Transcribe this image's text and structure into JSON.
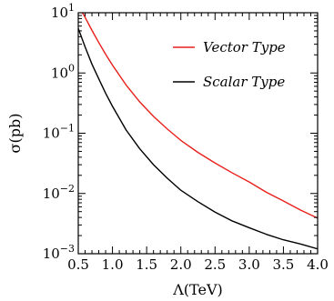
{
  "chart_data": {
    "type": "line",
    "title": "",
    "xlabel": "Λ(TeV)",
    "ylabel": "σ(pb)",
    "xlim": [
      0.5,
      4.0
    ],
    "ylim": [
      0.001,
      10
    ],
    "yscale": "log",
    "grid": false,
    "legend": "top-right",
    "x_ticks": [
      0.5,
      1.0,
      1.5,
      2.0,
      2.5,
      3.0,
      3.5,
      4.0
    ],
    "x_tick_labels": [
      "0.5",
      "1.0",
      "1.5",
      "2.0",
      "2.5",
      "3.0",
      "3.5",
      "4.0"
    ],
    "y_ticks": [
      0.001,
      0.01,
      0.1,
      1,
      10
    ],
    "y_tick_labels": [
      {
        "base": "10",
        "exp": "−3"
      },
      {
        "base": "10",
        "exp": "−2"
      },
      {
        "base": "10",
        "exp": "−1"
      },
      {
        "base": "10",
        "exp": "0"
      },
      {
        "base": "10",
        "exp": "1"
      }
    ],
    "series": [
      {
        "name": "Vector Type",
        "color": "#e8201c",
        "x": [
          0.56,
          0.6,
          0.7,
          0.8,
          0.9,
          1.0,
          1.2,
          1.4,
          1.6,
          1.8,
          2.0,
          2.25,
          2.5,
          2.75,
          3.0,
          3.25,
          3.5,
          3.75,
          4.0
        ],
        "y": [
          10,
          8.4,
          5.1,
          3.2,
          2.05,
          1.35,
          0.63,
          0.33,
          0.19,
          0.118,
          0.076,
          0.048,
          0.032,
          0.022,
          0.0155,
          0.0105,
          0.0075,
          0.0053,
          0.0039
        ]
      },
      {
        "name": "Scalar Type",
        "color": "#000000",
        "x": [
          0.5,
          0.6,
          0.7,
          0.8,
          0.9,
          1.0,
          1.2,
          1.4,
          1.6,
          1.8,
          2.0,
          2.25,
          2.5,
          2.75,
          3.0,
          3.25,
          3.5,
          3.75,
          4.0
        ],
        "y": [
          5.5,
          2.7,
          1.4,
          0.8,
          0.46,
          0.28,
          0.113,
          0.055,
          0.03,
          0.018,
          0.0113,
          0.0073,
          0.0049,
          0.0035,
          0.0027,
          0.0021,
          0.0017,
          0.00145,
          0.0012
        ]
      }
    ]
  }
}
